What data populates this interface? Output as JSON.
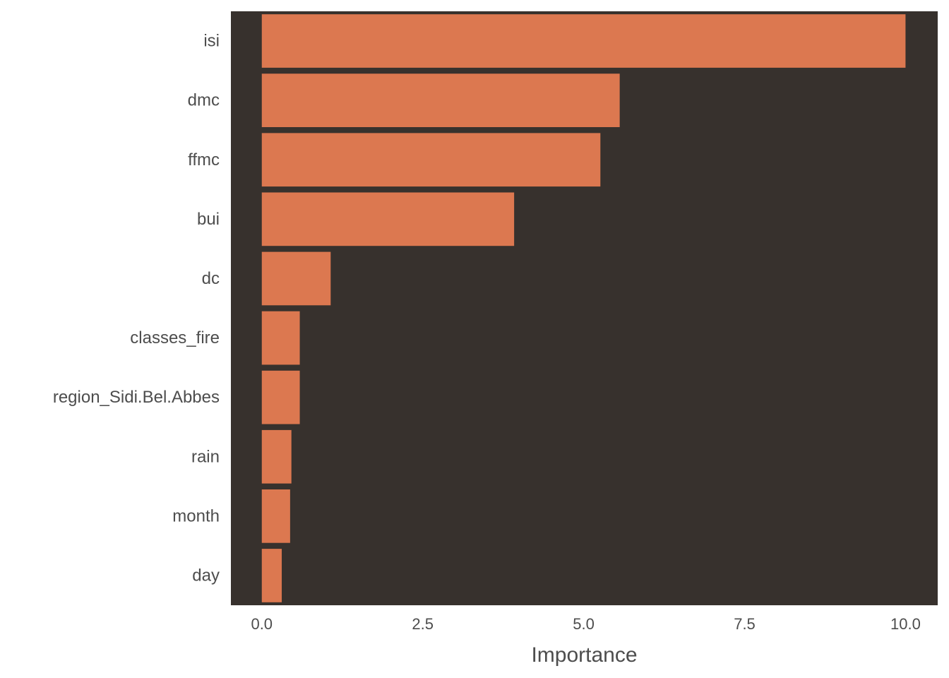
{
  "chart_data": {
    "type": "bar",
    "orientation": "horizontal",
    "categories": [
      "isi",
      "dmc",
      "ffmc",
      "bui",
      "dc",
      "classes_fire",
      "region_Sidi.Bel.Abbes",
      "rain",
      "month",
      "day"
    ],
    "values": [
      10.0,
      5.56,
      5.26,
      3.92,
      1.07,
      0.59,
      0.59,
      0.46,
      0.44,
      0.31
    ],
    "title": "",
    "xlabel": "Importance",
    "ylabel": "",
    "xlim": [
      -0.48,
      10.5
    ],
    "xticks": [
      0.0,
      2.5,
      5.0,
      7.5,
      10.0
    ],
    "xtick_labels": [
      "0.0",
      "2.5",
      "5.0",
      "7.5",
      "10.0"
    ],
    "grid": false,
    "legend": "none",
    "colors": {
      "panel_background": "#37312d",
      "bar_fill": "#dc7850",
      "text": "#4d4d4d"
    }
  }
}
